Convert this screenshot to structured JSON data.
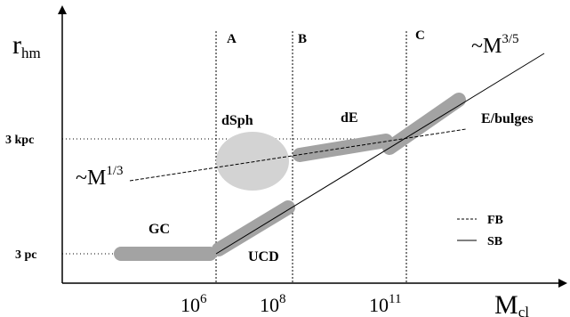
{
  "axes": {
    "y_symbol": "r",
    "y_subscript": "hm",
    "x_symbol": "M",
    "x_subscript": "cl",
    "y_ticks": [
      "3 kpc",
      "3 pc"
    ],
    "x_ticks": [
      {
        "base": "10",
        "exp": "6"
      },
      {
        "base": "10",
        "exp": "8"
      },
      {
        "base": "10",
        "exp": "11"
      }
    ]
  },
  "regions": [
    "A",
    "B",
    "C"
  ],
  "objects": {
    "gc": "GC",
    "ucd": "UCD",
    "dsph": "dSph",
    "de": "dE",
    "ebulges": "E/bulges"
  },
  "relations": {
    "fb_prefix": "~M",
    "fb_exp": "1/3",
    "sb_prefix": "~M",
    "sb_exp": "3/5"
  },
  "legend": [
    {
      "label": "FB",
      "style": "dashed"
    },
    {
      "label": "SB",
      "style": "solid"
    }
  ],
  "colors": {
    "band": "#a3a3a3",
    "blob": "#d3d3d3",
    "ink": "#000000"
  }
}
